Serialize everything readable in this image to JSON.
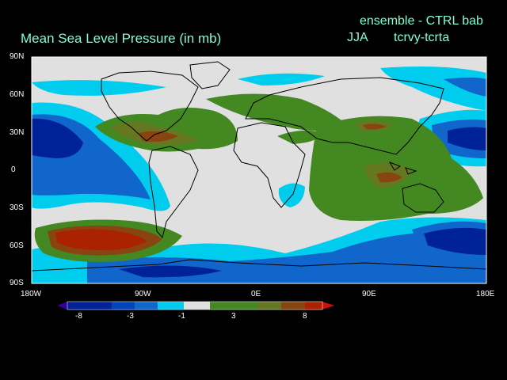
{
  "plot": {
    "title": "Mean Sea Level Pressure (in mb)",
    "experiment": "ensemble - CTRL bab",
    "season": "JJA",
    "difference": "tcrvy-tcrta"
  },
  "axes": {
    "lat_labels": [
      "90N",
      "60N",
      "30N",
      "0",
      "30S",
      "60S",
      "90S"
    ],
    "lon_labels": [
      "180W",
      "90W",
      "0E",
      "90E",
      "180E"
    ],
    "lat_range": [
      -90,
      90
    ],
    "lon_range": [
      -180,
      180
    ]
  },
  "colorbar": {
    "labels": [
      "-8",
      "-3",
      "-1",
      "3",
      "8"
    ],
    "colors": [
      "#330099",
      "#002299",
      "#0044bb",
      "#1166cc",
      "#22aacc",
      "#00ccee",
      "#e0e0e0",
      "#448822",
      "#667722",
      "#884411",
      "#aa2200",
      "#cc1111"
    ]
  },
  "colors": {
    "text": "#7fffd4",
    "land_outline": "#000000",
    "neutral": "#e0e0e0"
  }
}
